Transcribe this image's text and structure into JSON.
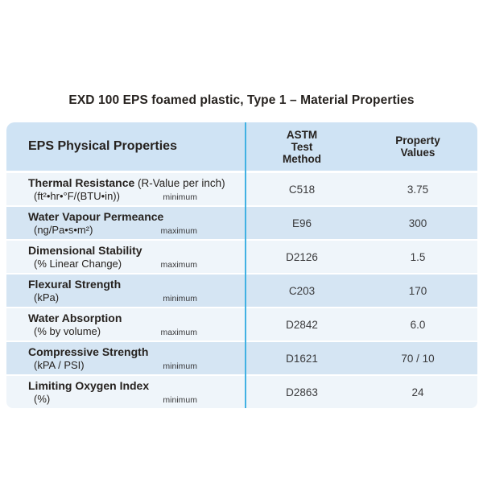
{
  "title": "EXD 100 EPS foamed plastic, Type 1 – Material Properties",
  "table": {
    "header": {
      "properties": "EPS Physical Properties",
      "astm_method": "ASTM\nTest\nMethod",
      "property_values": "Property\nValues"
    },
    "rows": [
      {
        "name": "Thermal Resistance",
        "name_suffix": " (R-Value per inch)",
        "unit": "(ft²•hr•°F/(BTU•in))",
        "qualifier": "minimum",
        "astm": "C518",
        "value": "3.75"
      },
      {
        "name": "Water Vapour Permeance",
        "unit": "(ng/Pa•s•m²)",
        "qualifier": "maximum",
        "astm": "E96",
        "value": "300"
      },
      {
        "name": "Dimensional Stability",
        "unit": "(% Linear Change)",
        "qualifier": "maximum",
        "astm": "D2126",
        "value": "1.5"
      },
      {
        "name": "Flexural Strength",
        "unit": "(kPa)",
        "qualifier": "minimum",
        "astm": "C203",
        "value": "170"
      },
      {
        "name": "Water Absorption",
        "unit": "(% by volume)",
        "qualifier": "maximum",
        "astm": "D2842",
        "value": "6.0"
      },
      {
        "name": "Compressive Strength",
        "unit": "(kPA / PSI)",
        "qualifier": "minimum",
        "astm": "D1621",
        "value": "70 / 10"
      },
      {
        "name": "Limiting Oxygen Index",
        "unit": "(%)",
        "qualifier": "minimum",
        "astm": "D2863",
        "value": "24"
      }
    ]
  },
  "colors": {
    "header_bg": "#cfe3f4",
    "row_light": "#eff5fa",
    "row_blue": "#d5e5f3",
    "separator_line": "#41b1e3",
    "text_dark": "#26221f",
    "text_secondary": "#3a3a3c"
  }
}
